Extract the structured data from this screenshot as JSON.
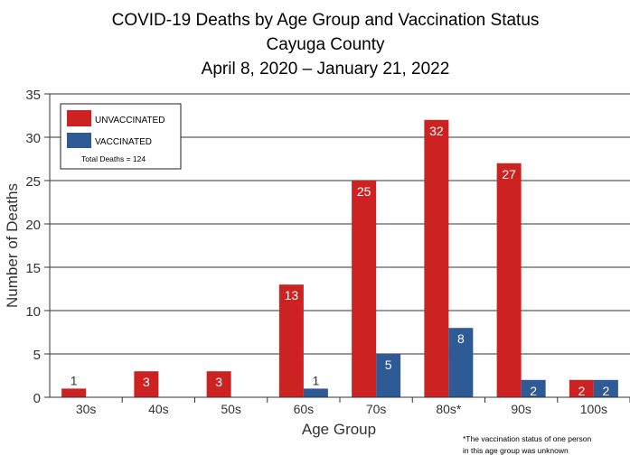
{
  "chart_data": {
    "type": "bar",
    "title": [
      "COVID-19 Deaths by Age Group and Vaccination Status",
      "Cayuga County",
      "April 8, 2020 – January 21, 2022"
    ],
    "xlabel": "Age Group",
    "ylabel": "Number of Deaths",
    "ylim": [
      0,
      35
    ],
    "yticks": [
      0,
      5,
      10,
      15,
      20,
      25,
      30,
      35
    ],
    "grid": true,
    "legend_placement": "top-left",
    "categories": [
      "30s",
      "40s",
      "50s",
      "60s",
      "70s",
      "80s*",
      "90s",
      "100s"
    ],
    "series": [
      {
        "name": "UNVACCINATED",
        "color": "#cc2222",
        "values": [
          1,
          3,
          3,
          13,
          25,
          32,
          27,
          2
        ]
      },
      {
        "name": "VACCINATED",
        "color": "#2e5a96",
        "values": [
          0,
          0,
          0,
          1,
          5,
          8,
          2,
          2
        ]
      }
    ],
    "legend_note": "Total Deaths = 124",
    "footnote": [
      "*The vaccination status of one person",
      "in this age group was unknown"
    ]
  }
}
